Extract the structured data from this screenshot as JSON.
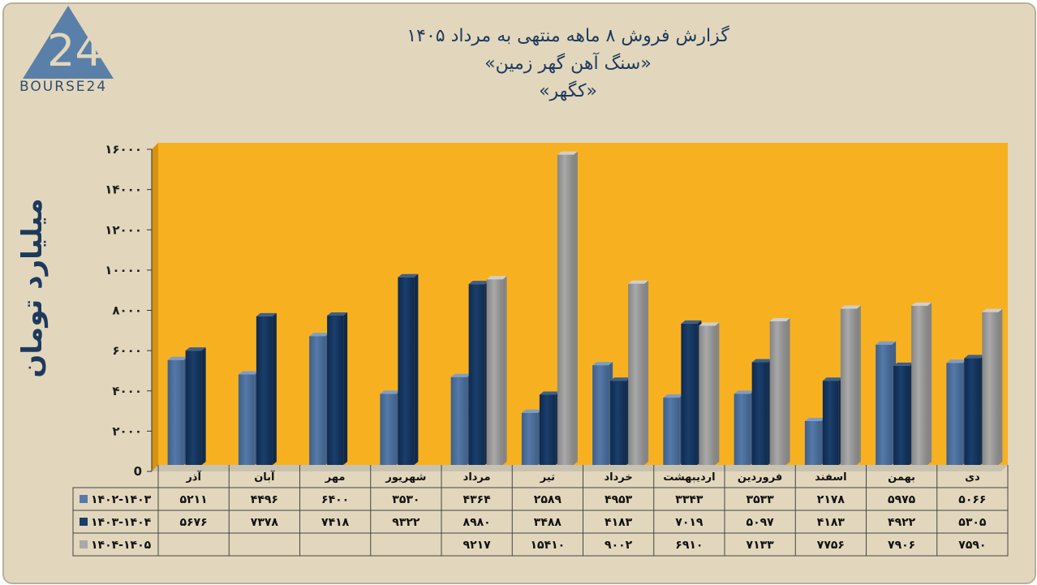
{
  "logo": {
    "mark": "24",
    "text": "BOURSE24"
  },
  "title": {
    "line1": "گزارش  فروش ۸ ماهه منتهی به مرداد ۱۴۰۵",
    "line2": "«سنگ آهن گهر زمین»",
    "line3": "«کگهر»"
  },
  "colors": {
    "background": "#e2d7bd",
    "plot_area": "#f7b120",
    "series1": "#5579a8",
    "series2": "#1a3e6b",
    "series3": "#a9a9a9"
  },
  "chart_data": {
    "type": "bar",
    "title": "گزارش  فروش ۸ ماهه منتهی به مرداد ۱۴۰۵",
    "ylabel": "میلیارد تومان",
    "ylim": [
      0,
      16000
    ],
    "yticks": [
      0,
      2000,
      4000,
      6000,
      8000,
      10000,
      12000,
      14000,
      16000
    ],
    "ytick_labels": [
      "0",
      "۲۰۰۰",
      "۴۰۰۰",
      "۶۰۰۰",
      "۸۰۰۰",
      "۱۰۰۰۰",
      "۱۲۰۰۰",
      "۱۴۰۰۰",
      "۱۶۰۰۰"
    ],
    "categories": [
      "دی",
      "بهمن",
      "اسفند",
      "فروردین",
      "اردیبهشت",
      "خرداد",
      "تیر",
      "مرداد",
      "شهریور",
      "مهر",
      "آبان",
      "آذر"
    ],
    "series": [
      {
        "name": "۱۴۰۲-۱۴۰۳",
        "values": [
          5066,
          5975,
          2178,
          3533,
          3343,
          4953,
          2589,
          4364,
          3530,
          6400,
          4496,
          5211
        ],
        "labels": [
          "۵۰۶۶",
          "۵۹۷۵",
          "۲۱۷۸",
          "۳۵۳۳",
          "۳۳۴۳",
          "۴۹۵۳",
          "۲۵۸۹",
          "۴۳۶۴",
          "۳۵۳۰",
          "۶۴۰۰",
          "۴۴۹۶",
          "۵۲۱۱"
        ]
      },
      {
        "name": "۱۴۰۳-۱۴۰۴",
        "values": [
          5305,
          4922,
          4183,
          5097,
          7019,
          4183,
          3488,
          8980,
          9322,
          7418,
          7378,
          5676
        ],
        "labels": [
          "۵۳۰۵",
          "۴۹۲۲",
          "۴۱۸۳",
          "۵۰۹۷",
          "۷۰۱۹",
          "۴۱۸۳",
          "۳۴۸۸",
          "۸۹۸۰",
          "۹۳۲۲",
          "۷۴۱۸",
          "۷۳۷۸",
          "۵۶۷۶"
        ]
      },
      {
        "name": "۱۴۰۴-۱۴۰۵",
        "values": [
          7590,
          7906,
          7756,
          7133,
          6910,
          9002,
          15410,
          9217,
          null,
          null,
          null,
          null
        ],
        "labels": [
          "۷۵۹۰",
          "۷۹۰۶",
          "۷۷۵۶",
          "۷۱۳۳",
          "۶۹۱۰",
          "۹۰۰۲",
          "۱۵۴۱۰",
          "۹۲۱۷",
          "",
          "",
          "",
          ""
        ]
      }
    ],
    "grid": false,
    "legend": "data-table-bottom"
  }
}
